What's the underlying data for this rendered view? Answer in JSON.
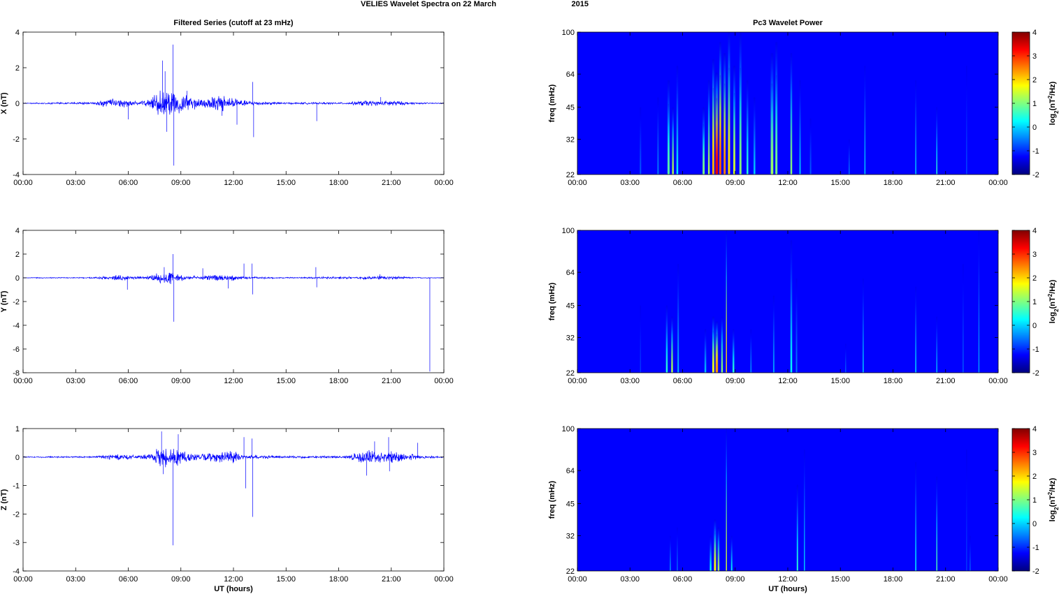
{
  "figure": {
    "suptitle_part1": "VELIES Wavelet Spectra on 22 March",
    "suptitle_part2": "2015"
  },
  "chart_data": [
    {
      "id": "ts-x",
      "type": "line",
      "title": "Filtered Series (cutoff at 23 mHz)",
      "ylabel": "X (nT)",
      "xlabel": "",
      "x_tick_labels": [
        "00:00",
        "03:00",
        "06:00",
        "09:00",
        "12:00",
        "15:00",
        "18:00",
        "21:00",
        "00:00"
      ],
      "xlim_hours": [
        0,
        24
      ],
      "ylim": [
        -4,
        4
      ],
      "y_ticks": [
        -4,
        -2,
        0,
        2,
        4
      ],
      "grid": false,
      "series": [
        {
          "color": "#0000ff",
          "envelope": [
            [
              0,
              0.03
            ],
            [
              4,
              0.08
            ],
            [
              5,
              0.3
            ],
            [
              5.8,
              0.25
            ],
            [
              6.5,
              0.12
            ],
            [
              7.3,
              0.25
            ],
            [
              7.8,
              0.9
            ],
            [
              8.5,
              0.9
            ],
            [
              9.3,
              0.55
            ],
            [
              10,
              0.3
            ],
            [
              11,
              0.5
            ],
            [
              11.8,
              0.5
            ],
            [
              12.5,
              0.2
            ],
            [
              13.5,
              0.12
            ],
            [
              15,
              0.06
            ],
            [
              18.5,
              0.06
            ],
            [
              19.6,
              0.2
            ],
            [
              20.4,
              0.12
            ],
            [
              21,
              0.22
            ],
            [
              21.6,
              0.12
            ],
            [
              22.5,
              0.05
            ],
            [
              24,
              0.03
            ]
          ],
          "spikes": [
            [
              6.0,
              -0.9
            ],
            [
              7.95,
              2.4
            ],
            [
              8.1,
              1.8
            ],
            [
              8.2,
              -1.6
            ],
            [
              8.55,
              3.3
            ],
            [
              8.6,
              -3.5
            ],
            [
              9.35,
              0.7
            ],
            [
              11.35,
              -0.7
            ],
            [
              12.2,
              -1.2
            ],
            [
              13.1,
              1.2
            ],
            [
              13.15,
              -1.9
            ],
            [
              16.75,
              -1.0
            ],
            [
              20.4,
              0.35
            ]
          ]
        }
      ]
    },
    {
      "id": "ts-y",
      "type": "line",
      "title": "",
      "ylabel": "Y (nT)",
      "xlabel": "",
      "x_tick_labels": [
        "00:00",
        "03:00",
        "06:00",
        "09:00",
        "12:00",
        "15:00",
        "18:00",
        "21:00",
        "00:00"
      ],
      "xlim_hours": [
        0,
        24
      ],
      "ylim": [
        -8,
        4
      ],
      "y_ticks": [
        -8,
        -6,
        -4,
        -2,
        0,
        2,
        4
      ],
      "grid": false,
      "series": [
        {
          "color": "#0000ff",
          "envelope": [
            [
              0,
              0.03
            ],
            [
              4,
              0.06
            ],
            [
              5,
              0.25
            ],
            [
              5.8,
              0.25
            ],
            [
              6.5,
              0.1
            ],
            [
              7.3,
              0.2
            ],
            [
              7.8,
              0.55
            ],
            [
              8.5,
              0.55
            ],
            [
              9.3,
              0.2
            ],
            [
              10,
              0.15
            ],
            [
              11,
              0.3
            ],
            [
              11.8,
              0.3
            ],
            [
              12.5,
              0.12
            ],
            [
              15,
              0.05
            ],
            [
              19.6,
              0.15
            ],
            [
              21,
              0.2
            ],
            [
              22,
              0.06
            ],
            [
              24,
              0.03
            ]
          ],
          "spikes": [
            [
              5.95,
              -1.0
            ],
            [
              8.55,
              2.0
            ],
            [
              8.6,
              -3.7
            ],
            [
              8.05,
              0.9
            ],
            [
              10.25,
              0.8
            ],
            [
              11.7,
              -0.9
            ],
            [
              12.6,
              1.2
            ],
            [
              13.05,
              1.2
            ],
            [
              13.1,
              -1.4
            ],
            [
              16.7,
              0.9
            ],
            [
              16.75,
              -0.8
            ],
            [
              20.35,
              0.3
            ],
            [
              23.2,
              -7.9
            ]
          ]
        }
      ]
    },
    {
      "id": "ts-z",
      "type": "line",
      "title": "",
      "ylabel": "Z (nT)",
      "xlabel": "UT (hours)",
      "x_tick_labels": [
        "00:00",
        "03:00",
        "06:00",
        "09:00",
        "12:00",
        "15:00",
        "18:00",
        "21:00",
        "00:00"
      ],
      "xlim_hours": [
        0,
        24
      ],
      "ylim": [
        -4,
        1
      ],
      "y_ticks": [
        -4,
        -3,
        -2,
        -1,
        0,
        1
      ],
      "grid": false,
      "series": [
        {
          "color": "#0000ff",
          "envelope": [
            [
              0,
              0.02
            ],
            [
              4,
              0.04
            ],
            [
              5,
              0.12
            ],
            [
              6,
              0.12
            ],
            [
              6.5,
              0.06
            ],
            [
              7.3,
              0.12
            ],
            [
              7.8,
              0.4
            ],
            [
              8.6,
              0.4
            ],
            [
              9.3,
              0.25
            ],
            [
              10,
              0.12
            ],
            [
              11,
              0.2
            ],
            [
              12,
              0.25
            ],
            [
              12.5,
              0.1
            ],
            [
              15,
              0.04
            ],
            [
              18.5,
              0.06
            ],
            [
              19.4,
              0.25
            ],
            [
              20,
              0.3
            ],
            [
              20.6,
              0.2
            ],
            [
              21,
              0.3
            ],
            [
              21.6,
              0.15
            ],
            [
              22.5,
              0.1
            ],
            [
              24,
              0.02
            ]
          ],
          "spikes": [
            [
              7.9,
              0.9
            ],
            [
              8.0,
              -0.6
            ],
            [
              8.55,
              -3.1
            ],
            [
              8.85,
              0.8
            ],
            [
              12.6,
              0.7
            ],
            [
              12.7,
              -1.1
            ],
            [
              13.05,
              0.65
            ],
            [
              13.1,
              -2.1
            ],
            [
              19.6,
              -0.65
            ],
            [
              20.05,
              0.55
            ],
            [
              20.85,
              0.7
            ],
            [
              20.9,
              -0.5
            ],
            [
              22.5,
              0.5
            ]
          ]
        }
      ]
    },
    {
      "id": "wp-x",
      "type": "heatmap",
      "title": "Pc3 Wavelet Power",
      "ylabel": "freq (mHz)",
      "xlabel": "",
      "x_tick_labels": [
        "00:00",
        "03:00",
        "06:00",
        "09:00",
        "12:00",
        "15:00",
        "18:00",
        "21:00",
        "00:00"
      ],
      "xlim_hours": [
        0,
        24
      ],
      "y_scale": "log",
      "ylim": [
        22,
        100
      ],
      "y_ticks": [
        22,
        32,
        45,
        64,
        100
      ],
      "colorbar": {
        "label_prefix": "log",
        "label_sub": "2",
        "label_main": "(nT",
        "label_sup": "2",
        "label_end": "/Hz)",
        "range": [
          -2,
          4
        ],
        "ticks": [
          -2,
          -1,
          0,
          1,
          2,
          3,
          4
        ],
        "colormap": "jet"
      },
      "background_level": -2,
      "features": [
        [
          3.6,
          0.08,
          45,
          -1.2
        ],
        [
          4.6,
          0.08,
          50,
          -1.0
        ],
        [
          5.2,
          0.12,
          60,
          0.3
        ],
        [
          5.45,
          0.1,
          45,
          0.8
        ],
        [
          5.7,
          0.1,
          70,
          -0.3
        ],
        [
          7.2,
          0.12,
          45,
          0.5
        ],
        [
          7.5,
          0.1,
          60,
          0.8
        ],
        [
          7.75,
          0.12,
          75,
          1.8
        ],
        [
          7.95,
          0.15,
          65,
          2.9
        ],
        [
          8.15,
          0.12,
          90,
          2.3
        ],
        [
          8.4,
          0.12,
          80,
          2.0
        ],
        [
          8.65,
          0.12,
          100,
          1.5
        ],
        [
          8.95,
          0.12,
          70,
          1.0
        ],
        [
          9.3,
          0.12,
          100,
          0.6
        ],
        [
          9.7,
          0.1,
          60,
          0.0
        ],
        [
          10.1,
          0.1,
          50,
          -0.5
        ],
        [
          11.1,
          0.15,
          80,
          0.7
        ],
        [
          11.35,
          0.12,
          90,
          0.5
        ],
        [
          12.2,
          0.1,
          80,
          0.6
        ],
        [
          12.7,
          0.08,
          60,
          -0.6
        ],
        [
          13.3,
          0.08,
          40,
          -1.2
        ],
        [
          15.5,
          0.06,
          32,
          -1.0
        ],
        [
          16.4,
          0.06,
          70,
          -0.5
        ],
        [
          19.3,
          0.06,
          60,
          -0.5
        ],
        [
          20.5,
          0.06,
          45,
          0.0
        ],
        [
          22.2,
          0.06,
          70,
          -1.3
        ]
      ]
    },
    {
      "id": "wp-y",
      "type": "heatmap",
      "title": "",
      "ylabel": "freq (mHz)",
      "xlabel": "",
      "x_tick_labels": [
        "00:00",
        "03:00",
        "06:00",
        "09:00",
        "12:00",
        "15:00",
        "18:00",
        "21:00",
        "00:00"
      ],
      "xlim_hours": [
        0,
        24
      ],
      "y_scale": "log",
      "ylim": [
        22,
        100
      ],
      "y_ticks": [
        22,
        32,
        45,
        64,
        100
      ],
      "colorbar": {
        "label_prefix": "log",
        "label_sub": "2",
        "label_main": "(nT",
        "label_sup": "2",
        "label_end": "/Hz)",
        "range": [
          -2,
          4
        ],
        "ticks": [
          -2,
          -1,
          0,
          1,
          2,
          3,
          4
        ],
        "colormap": "jet"
      },
      "background_level": -2,
      "features": [
        [
          3.6,
          0.06,
          45,
          -1.4
        ],
        [
          5.1,
          0.1,
          45,
          0.0
        ],
        [
          5.4,
          0.1,
          40,
          0.8
        ],
        [
          5.75,
          0.08,
          70,
          -0.6
        ],
        [
          7.3,
          0.1,
          35,
          -0.6
        ],
        [
          7.75,
          0.12,
          40,
          1.2
        ],
        [
          7.95,
          0.14,
          38,
          1.9
        ],
        [
          8.25,
          0.1,
          40,
          0.6
        ],
        [
          8.5,
          0.04,
          100,
          1.5
        ],
        [
          8.9,
          0.1,
          35,
          0.0
        ],
        [
          9.9,
          0.08,
          35,
          -1.0
        ],
        [
          11.2,
          0.08,
          50,
          -0.8
        ],
        [
          12.2,
          0.1,
          90,
          -0.2
        ],
        [
          12.5,
          0.08,
          60,
          -1.0
        ],
        [
          15.3,
          0.05,
          30,
          -1.2
        ],
        [
          16.3,
          0.06,
          60,
          -0.5
        ],
        [
          19.3,
          0.06,
          55,
          -0.4
        ],
        [
          20.5,
          0.06,
          40,
          -0.6
        ],
        [
          22.0,
          0.05,
          70,
          -1.2
        ],
        [
          22.9,
          0.05,
          100,
          -0.8
        ]
      ]
    },
    {
      "id": "wp-z",
      "type": "heatmap",
      "title": "",
      "ylabel": "freq (mHz)",
      "xlabel": "UT (hours)",
      "x_tick_labels": [
        "00:00",
        "03:00",
        "06:00",
        "09:00",
        "12:00",
        "15:00",
        "18:00",
        "21:00",
        "00:00"
      ],
      "xlim_hours": [
        0,
        24
      ],
      "y_scale": "log",
      "ylim": [
        22,
        100
      ],
      "y_ticks": [
        22,
        32,
        45,
        64,
        100
      ],
      "colorbar": {
        "label_prefix": "log",
        "label_sub": "2",
        "label_main": "(nT",
        "label_sup": "2",
        "label_end": "/Hz)",
        "range": [
          -2,
          4
        ],
        "ticks": [
          -2,
          -1,
          0,
          1,
          2,
          3,
          4
        ],
        "colormap": "jet"
      },
      "background_level": -2,
      "features": [
        [
          5.3,
          0.06,
          32,
          -0.8
        ],
        [
          5.7,
          0.06,
          35,
          -1.1
        ],
        [
          7.6,
          0.1,
          32,
          -0.2
        ],
        [
          7.85,
          0.12,
          38,
          1.3
        ],
        [
          8.05,
          0.1,
          35,
          0.8
        ],
        [
          8.5,
          0.04,
          100,
          1.0
        ],
        [
          8.8,
          0.08,
          32,
          -0.3
        ],
        [
          12.55,
          0.08,
          55,
          0.0
        ],
        [
          12.95,
          0.06,
          80,
          -0.5
        ],
        [
          19.3,
          0.06,
          70,
          -0.2
        ],
        [
          20.5,
          0.06,
          60,
          0.2
        ],
        [
          22.2,
          0.05,
          80,
          -1.4
        ],
        [
          22.4,
          0.05,
          32,
          -1.2
        ]
      ]
    }
  ]
}
